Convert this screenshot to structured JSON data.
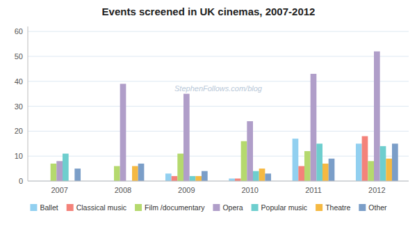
{
  "chart_data": {
    "type": "bar",
    "title": "Events screened in UK cinemas, 2007-2012",
    "categories": [
      "2007",
      "2008",
      "2009",
      "2010",
      "2011",
      "2012"
    ],
    "series": [
      {
        "name": "Ballet",
        "color": "#92d0f0",
        "values": [
          0,
          0,
          3,
          1,
          17,
          15
        ]
      },
      {
        "name": "Classical music",
        "color": "#f4827a",
        "values": [
          0,
          0,
          2,
          1,
          6,
          18
        ]
      },
      {
        "name": "Film /documentary",
        "color": "#b5d96e",
        "values": [
          7,
          6,
          11,
          16,
          12,
          8
        ]
      },
      {
        "name": "Opera",
        "color": "#b09ec9",
        "values": [
          8,
          39,
          35,
          24,
          43,
          52
        ]
      },
      {
        "name": "Popular music",
        "color": "#6ecece",
        "values": [
          11,
          0,
          2,
          4,
          15,
          14
        ]
      },
      {
        "name": "Theatre",
        "color": "#f5b942",
        "values": [
          0,
          6,
          2,
          5,
          7,
          9
        ]
      },
      {
        "name": "Other",
        "color": "#7b9ec8",
        "values": [
          5,
          7,
          4,
          3,
          9,
          15
        ]
      }
    ],
    "annotations": [
      "StephenFollows.com/blog"
    ],
    "ylim": [
      0,
      62
    ],
    "yticks": [
      0,
      10,
      20,
      30,
      40,
      50,
      60
    ],
    "grid": true,
    "legend": "bottom"
  }
}
